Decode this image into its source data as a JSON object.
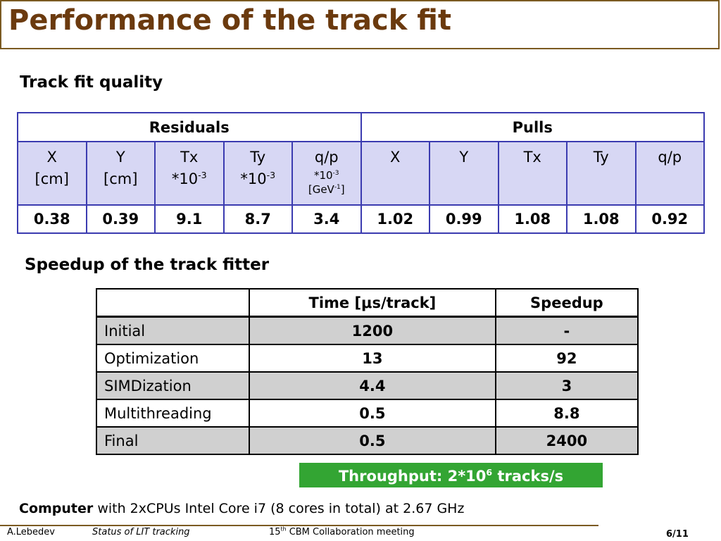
{
  "header": {
    "title": "Performance of the track fit"
  },
  "fit_quality": {
    "heading": "Track fit quality",
    "groups": [
      "Residuals",
      "Pulls"
    ],
    "columns": [
      {
        "name": "X",
        "unit": "[cm]"
      },
      {
        "name": "Y",
        "unit": "[cm]"
      },
      {
        "name": "Tx",
        "scale": "*10",
        "scale_exp": "-3"
      },
      {
        "name": "Ty",
        "scale": "*10",
        "scale_exp": "-3"
      },
      {
        "name": "q/p",
        "scale": "*10",
        "scale_exp": "-3",
        "unit": "[GeV",
        "unit_exp": "-1",
        "unit_end": "]"
      },
      {
        "name": "X"
      },
      {
        "name": "Y"
      },
      {
        "name": "Tx"
      },
      {
        "name": "Ty"
      },
      {
        "name": "q/p"
      }
    ],
    "values": [
      0.38,
      0.39,
      9.1,
      8.7,
      3.4,
      1.02,
      0.99,
      1.08,
      1.08,
      0.92
    ]
  },
  "speedup": {
    "heading": "Speedup of the track fitter",
    "columns": [
      "Time [μs/track]",
      "Speedup"
    ],
    "rows": [
      {
        "label": "Initial",
        "time": 1200,
        "speedup": "-"
      },
      {
        "label": "Optimization",
        "time": 13,
        "speedup": 92
      },
      {
        "label": "SIMDization",
        "time": 4.4,
        "speedup": 3
      },
      {
        "label": "Multithreading",
        "time": 0.5,
        "speedup": 8.8
      },
      {
        "label": "Final",
        "time": 0.5,
        "speedup": 2400
      }
    ]
  },
  "throughput": {
    "text": "Throughput: 2*10",
    "exp": "6",
    "rest": " tracks/s"
  },
  "computer": {
    "bold": "Computer",
    "text": "with 2xCPUs Intel Core i7 (8 cores in total) at 2.67 GHz"
  },
  "footer": {
    "author": "A.Lebedev",
    "talk": "Status of LIT tracking",
    "meeting_number": "15",
    "meeting_suffix": "th",
    "meeting_name": "CBM Collaboration meeting",
    "page": "6/11"
  }
}
